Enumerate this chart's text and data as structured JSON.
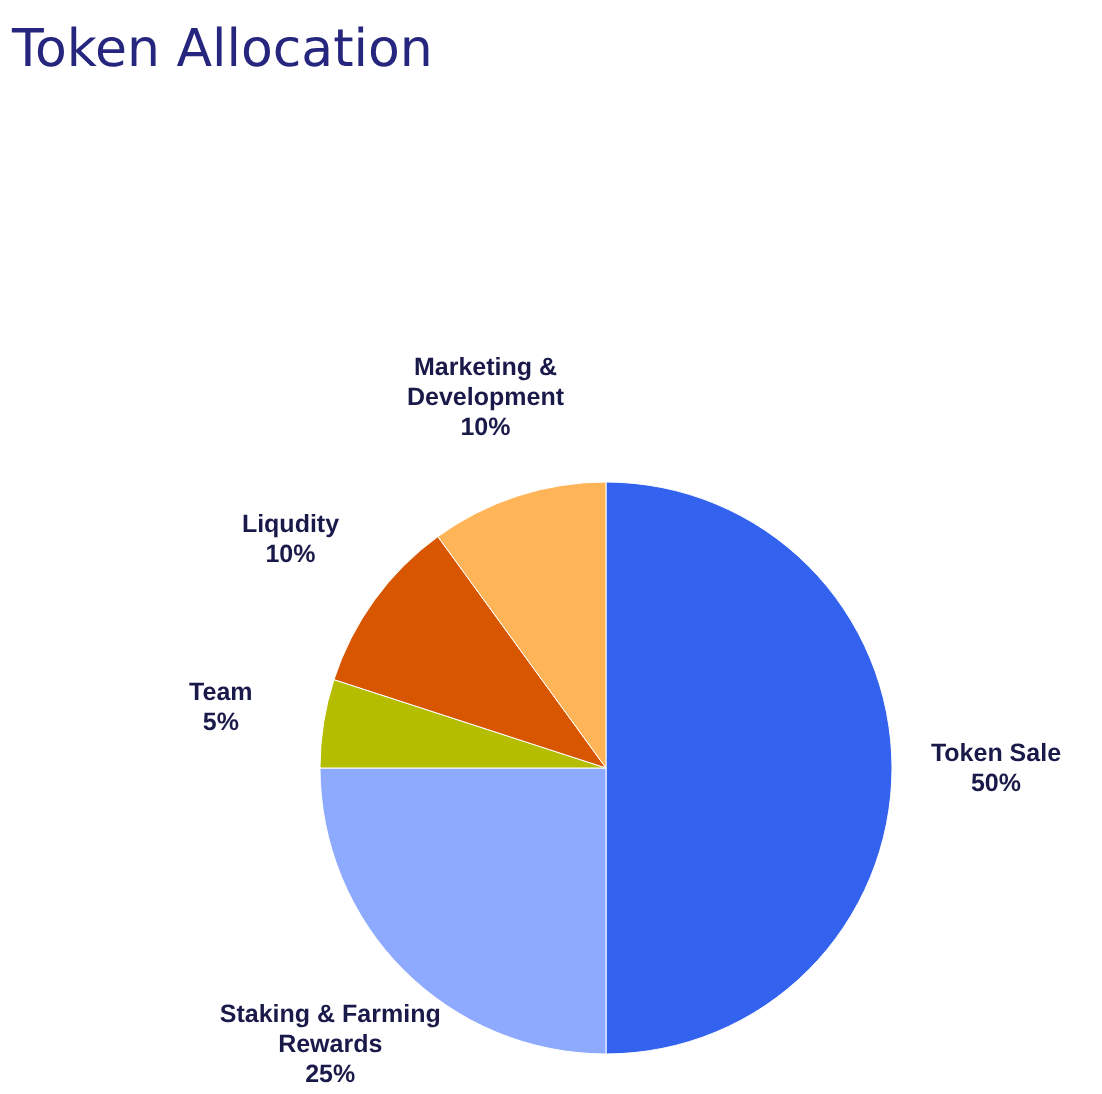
{
  "chart_data": {
    "type": "pie",
    "title": "Token Allocation",
    "categories": [
      "Token Sale",
      "Staking & Farming Rewards",
      "Team",
      "Liqudity",
      "Marketing & Development"
    ],
    "values": [
      50,
      25,
      5,
      10,
      10
    ],
    "value_labels": [
      "50%",
      "25%",
      "5%",
      "10%",
      "10%"
    ],
    "colors": [
      "#3362ee",
      "#8eaaff",
      "#b5bd00",
      "#d95600",
      "#ffb457"
    ]
  }
}
